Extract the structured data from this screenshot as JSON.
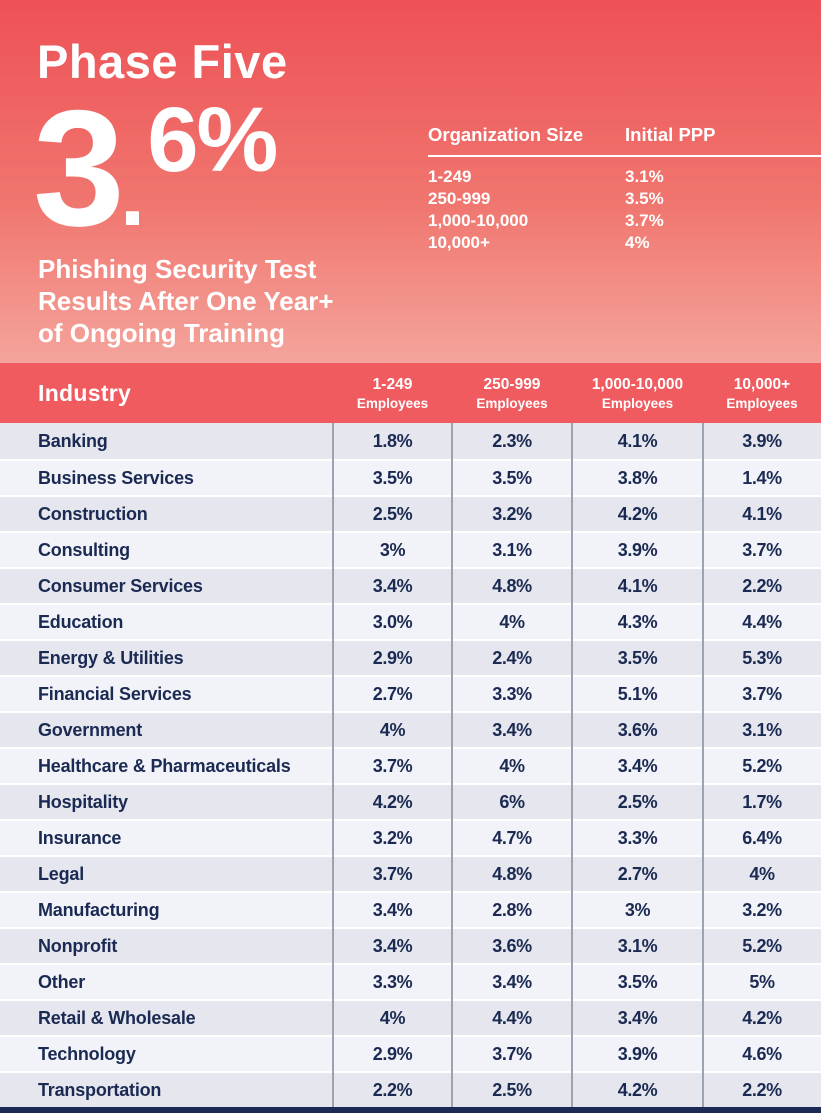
{
  "hero": {
    "title": "Phase Five",
    "stat": {
      "integer": "3",
      "decimal_point": ".",
      "fraction": "6%",
      "full_value": "3.6%"
    },
    "subtitle": "Phishing Security Test\nResults After One Year+\nof Ongoing Training"
  },
  "org_table": {
    "headers": {
      "size": "Organization Size",
      "ppp": "Initial PPP"
    },
    "rows": [
      {
        "size": "1-249",
        "ppp": "3.1%"
      },
      {
        "size": "250-999",
        "ppp": "3.5%"
      },
      {
        "size": "1,000-10,000",
        "ppp": "3.7%"
      },
      {
        "size": "10,000+",
        "ppp": "4%"
      }
    ]
  },
  "main_table": {
    "industry_header": "Industry",
    "columns": [
      {
        "range": "1-249",
        "label": "Employees"
      },
      {
        "range": "250-999",
        "label": "Employees"
      },
      {
        "range": "1,000-10,000",
        "label": "Employees"
      },
      {
        "range": "10,000+",
        "label": "Employees"
      }
    ],
    "rows": [
      {
        "industry": "Banking",
        "values": [
          "1.8%",
          "2.3%",
          "4.1%",
          "3.9%"
        ]
      },
      {
        "industry": "Business Services",
        "values": [
          "3.5%",
          "3.5%",
          "3.8%",
          "1.4%"
        ]
      },
      {
        "industry": "Construction",
        "values": [
          "2.5%",
          "3.2%",
          "4.2%",
          "4.1%"
        ]
      },
      {
        "industry": "Consulting",
        "values": [
          "3%",
          "3.1%",
          "3.9%",
          "3.7%"
        ]
      },
      {
        "industry": "Consumer Services",
        "values": [
          "3.4%",
          "4.8%",
          "4.1%",
          "2.2%"
        ]
      },
      {
        "industry": "Education",
        "values": [
          "3.0%",
          "4%",
          "4.3%",
          "4.4%"
        ]
      },
      {
        "industry": "Energy & Utilities",
        "values": [
          "2.9%",
          "2.4%",
          "3.5%",
          "5.3%"
        ]
      },
      {
        "industry": "Financial Services",
        "values": [
          "2.7%",
          "3.3%",
          "5.1%",
          "3.7%"
        ]
      },
      {
        "industry": "Government",
        "values": [
          "4%",
          "3.4%",
          "3.6%",
          "3.1%"
        ]
      },
      {
        "industry": "Healthcare & Pharmaceuticals",
        "values": [
          "3.7%",
          "4%",
          "3.4%",
          "5.2%"
        ]
      },
      {
        "industry": "Hospitality",
        "values": [
          "4.2%",
          "6%",
          "2.5%",
          "1.7%"
        ]
      },
      {
        "industry": "Insurance",
        "values": [
          "3.2%",
          "4.7%",
          "3.3%",
          "6.4%"
        ]
      },
      {
        "industry": "Legal",
        "values": [
          "3.7%",
          "4.8%",
          "2.7%",
          "4%"
        ]
      },
      {
        "industry": "Manufacturing",
        "values": [
          "3.4%",
          "2.8%",
          "3%",
          "3.2%"
        ]
      },
      {
        "industry": "Nonprofit",
        "values": [
          "3.4%",
          "3.6%",
          "3.1%",
          "5.2%"
        ]
      },
      {
        "industry": "Other",
        "values": [
          "3.3%",
          "3.4%",
          "3.5%",
          "5%"
        ]
      },
      {
        "industry": "Retail & Wholesale",
        "values": [
          "4%",
          "4.4%",
          "3.4%",
          "4.2%"
        ]
      },
      {
        "industry": "Technology",
        "values": [
          "2.9%",
          "3.7%",
          "3.9%",
          "4.6%"
        ]
      },
      {
        "industry": "Transportation",
        "values": [
          "2.2%",
          "2.5%",
          "4.2%",
          "2.2%"
        ]
      }
    ]
  },
  "colors": {
    "gradient_top": "#EE5156",
    "gradient_bottom": "#F4A49C",
    "table_header_red": "#F05B60",
    "navy_text": "#1B2A52",
    "row_dark": "#E5E6EE",
    "row_light": "#F2F3F8",
    "column_line_gray": "#9BA3B1"
  }
}
